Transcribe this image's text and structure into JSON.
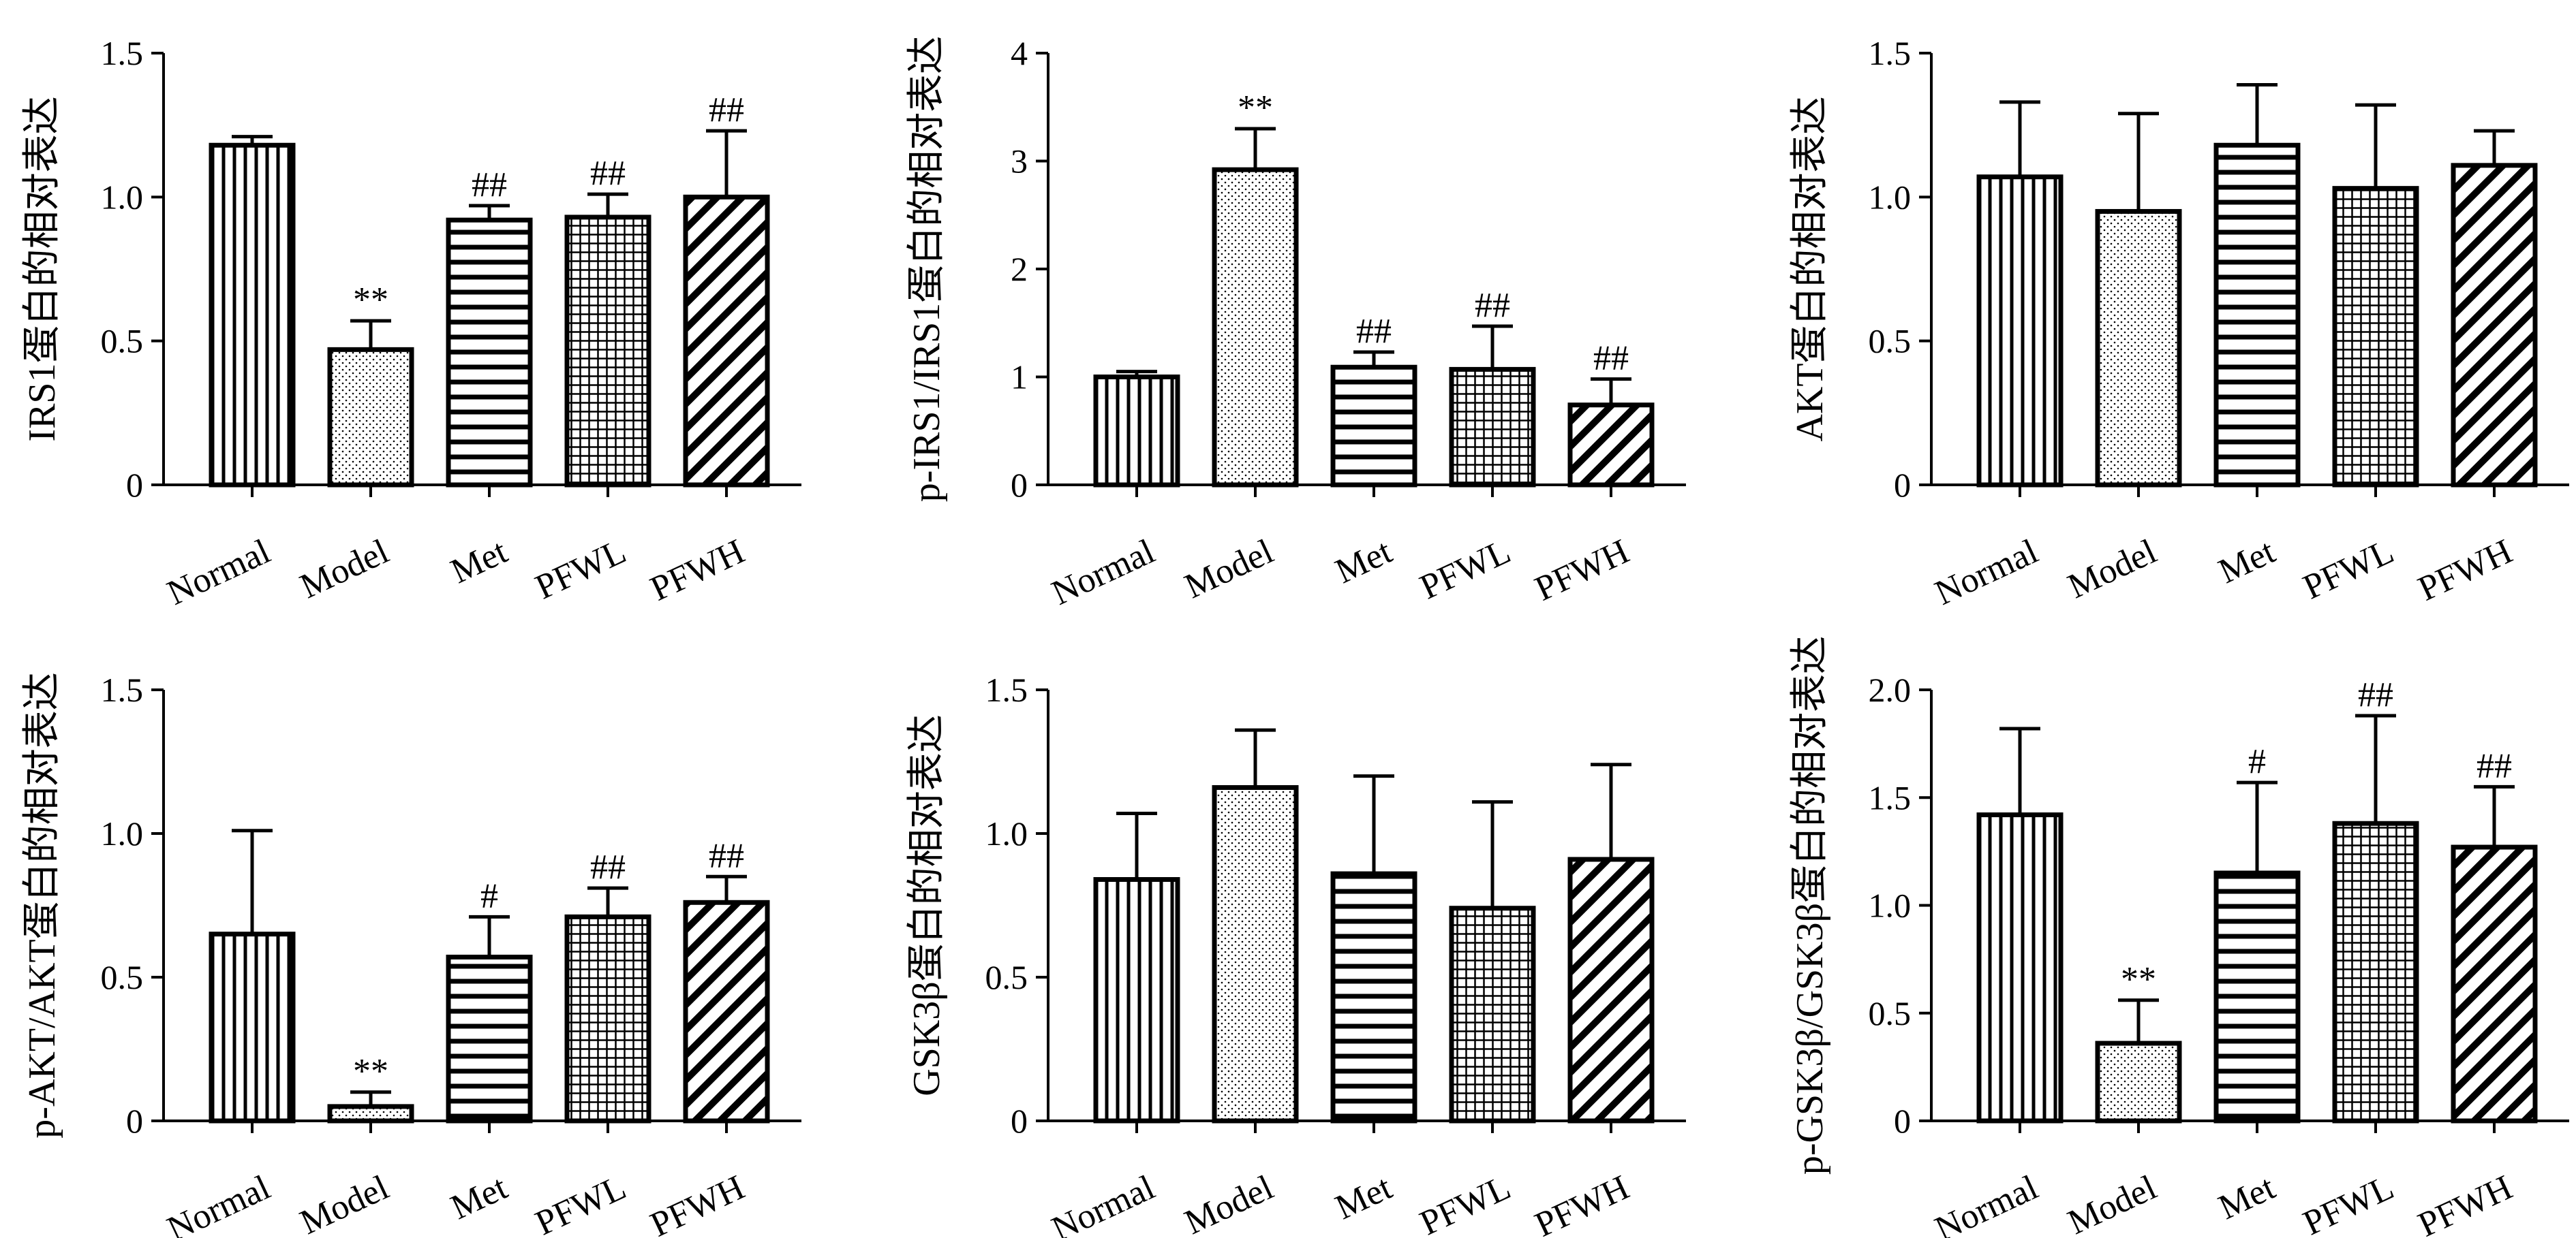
{
  "chart_data": [
    {
      "type": "bar",
      "ylabel": "IRS1蛋白的相对表达",
      "categories": [
        "Normal",
        "Model",
        "Met",
        "PFWL",
        "PFWH"
      ],
      "values": [
        1.18,
        0.47,
        0.92,
        0.93,
        1.0
      ],
      "errors": [
        0.03,
        0.1,
        0.05,
        0.08,
        0.23
      ],
      "significance": [
        "",
        "**",
        "##",
        "##",
        "##"
      ],
      "ylim": [
        0,
        1.5
      ],
      "yticks": [
        "0",
        "0.5",
        "1.0",
        "1.5"
      ]
    },
    {
      "type": "bar",
      "ylabel": "p-IRS1/IRS1蛋白的相对表达",
      "categories": [
        "Normal",
        "Model",
        "Met",
        "PFWL",
        "PFWH"
      ],
      "values": [
        1.0,
        2.92,
        1.09,
        1.07,
        0.74
      ],
      "errors": [
        0.05,
        0.38,
        0.14,
        0.4,
        0.24
      ],
      "significance": [
        "",
        "**",
        "##",
        "##",
        "##"
      ],
      "ylim": [
        0,
        4
      ],
      "yticks": [
        "0",
        "1",
        "2",
        "3",
        "4"
      ]
    },
    {
      "type": "bar",
      "ylabel": "AKT蛋白的相对表达",
      "categories": [
        "Normal",
        "Model",
        "Met",
        "PFWL",
        "PFWH"
      ],
      "values": [
        1.07,
        0.95,
        1.18,
        1.03,
        1.11
      ],
      "errors": [
        0.26,
        0.34,
        0.21,
        0.29,
        0.12
      ],
      "significance": [
        "",
        "",
        "",
        "",
        ""
      ],
      "ylim": [
        0,
        1.5
      ],
      "yticks": [
        "0",
        "0.5",
        "1.0",
        "1.5"
      ]
    },
    {
      "type": "bar",
      "ylabel": "p-AKT/AKT蛋白的相对表达",
      "categories": [
        "Normal",
        "Model",
        "Met",
        "PFWL",
        "PFWH"
      ],
      "values": [
        0.65,
        0.05,
        0.57,
        0.71,
        0.76
      ],
      "errors": [
        0.36,
        0.05,
        0.14,
        0.1,
        0.09
      ],
      "significance": [
        "",
        "**",
        "#",
        "##",
        "##"
      ],
      "ylim": [
        0,
        1.5
      ],
      "yticks": [
        "0",
        "0.5",
        "1.0",
        "1.5"
      ]
    },
    {
      "type": "bar",
      "ylabel": "GSK3β蛋白的相对表达",
      "categories": [
        "Normal",
        "Model",
        "Met",
        "PFWL",
        "PFWH"
      ],
      "values": [
        0.84,
        1.16,
        0.86,
        0.74,
        0.91
      ],
      "errors": [
        0.23,
        0.2,
        0.34,
        0.37,
        0.33
      ],
      "significance": [
        "",
        "",
        "",
        "",
        ""
      ],
      "ylim": [
        0,
        1.5
      ],
      "yticks": [
        "0",
        "0.5",
        "1.0",
        "1.5"
      ]
    },
    {
      "type": "bar",
      "ylabel": "p-GSK3β/GSK3β蛋白的相对表达",
      "categories": [
        "Normal",
        "Model",
        "Met",
        "PFWL",
        "PFWH"
      ],
      "values": [
        1.42,
        0.36,
        1.15,
        1.38,
        1.27
      ],
      "errors": [
        0.4,
        0.2,
        0.42,
        0.5,
        0.28
      ],
      "significance": [
        "",
        "**",
        "#",
        "##",
        "##"
      ],
      "ylim": [
        0,
        2.0
      ],
      "yticks": [
        "0",
        "0.5",
        "1.0",
        "1.5",
        "2.0"
      ]
    }
  ],
  "patterns": [
    "vertical-lines",
    "dots",
    "horizontal-lines",
    "grid",
    "diagonal-lines"
  ],
  "colors": {
    "ink": "#000000",
    "background": "#ffffff"
  }
}
